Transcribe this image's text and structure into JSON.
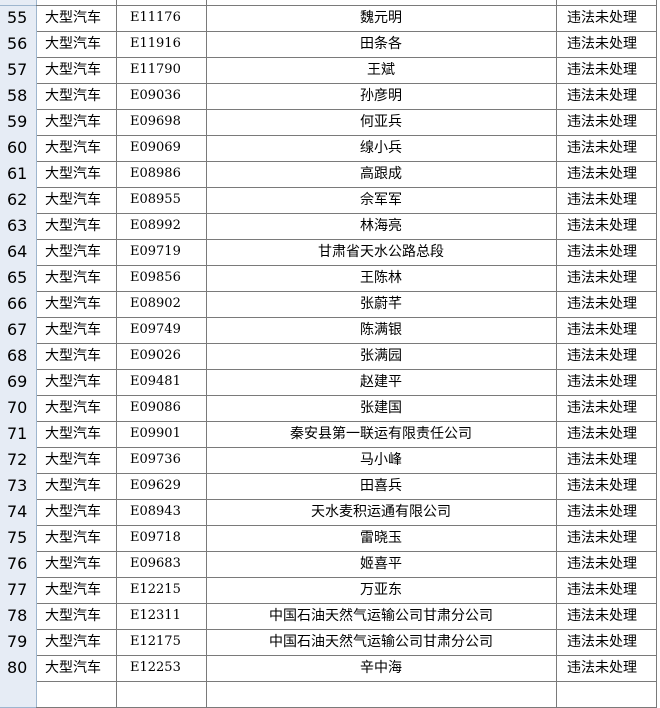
{
  "table": {
    "rows": [
      [
        "55",
        "大型汽车",
        "E11176",
        "魏元明",
        "违法未处理"
      ],
      [
        "56",
        "大型汽车",
        "E11916",
        "田条各",
        "违法未处理"
      ],
      [
        "57",
        "大型汽车",
        "E11790",
        "王斌",
        "违法未处理"
      ],
      [
        "58",
        "大型汽车",
        "E09036",
        "孙彦明",
        "违法未处理"
      ],
      [
        "59",
        "大型汽车",
        "E09698",
        "何亚兵",
        "违法未处理"
      ],
      [
        "60",
        "大型汽车",
        "E09069",
        "缐小兵",
        "违法未处理"
      ],
      [
        "61",
        "大型汽车",
        "E08986",
        "高跟成",
        "违法未处理"
      ],
      [
        "62",
        "大型汽车",
        "E08955",
        "佘军军",
        "违法未处理"
      ],
      [
        "63",
        "大型汽车",
        "E08992",
        "林海亮",
        "违法未处理"
      ],
      [
        "64",
        "大型汽车",
        "E09719",
        "甘肃省天水公路总段",
        "违法未处理"
      ],
      [
        "65",
        "大型汽车",
        "E09856",
        "王陈林",
        "违法未处理"
      ],
      [
        "66",
        "大型汽车",
        "E08902",
        "张蔚芊",
        "违法未处理"
      ],
      [
        "67",
        "大型汽车",
        "E09749",
        "陈满银",
        "违法未处理"
      ],
      [
        "68",
        "大型汽车",
        "E09026",
        "张满园",
        "违法未处理"
      ],
      [
        "69",
        "大型汽车",
        "E09481",
        "赵建平",
        "违法未处理"
      ],
      [
        "70",
        "大型汽车",
        "E09086",
        "张建国",
        "违法未处理"
      ],
      [
        "71",
        "大型汽车",
        "E09901",
        "秦安县第一联运有限责任公司",
        "违法未处理"
      ],
      [
        "72",
        "大型汽车",
        "E09736",
        "马小峰",
        "违法未处理"
      ],
      [
        "73",
        "大型汽车",
        "E09629",
        "田喜兵",
        "违法未处理"
      ],
      [
        "74",
        "大型汽车",
        "E08943",
        "天水麦积运通有限公司",
        "违法未处理"
      ],
      [
        "75",
        "大型汽车",
        "E09718",
        "雷晓玉",
        "违法未处理"
      ],
      [
        "76",
        "大型汽车",
        "E09683",
        "姬喜平",
        "违法未处理"
      ],
      [
        "77",
        "大型汽车",
        "E12215",
        "万亚东",
        "违法未处理"
      ],
      [
        "78",
        "大型汽车",
        "E12311",
        "中国石油天然气运输公司甘肃分公司",
        "违法未处理"
      ],
      [
        "79",
        "大型汽车",
        "E12175",
        "中国石油天然气运输公司甘肃分公司",
        "违法未处理"
      ],
      [
        "80",
        "大型汽车",
        "E12253",
        "辛中海",
        "违法未处理"
      ]
    ]
  }
}
